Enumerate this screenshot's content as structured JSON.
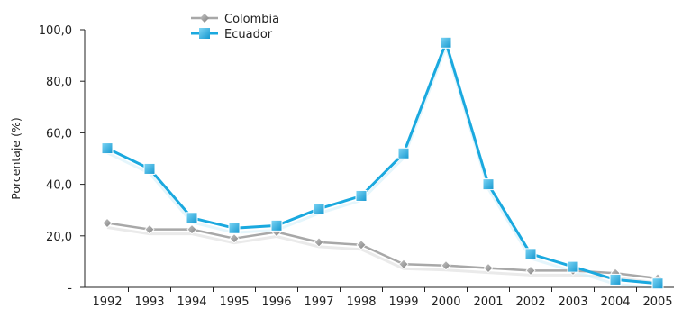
{
  "chart_data": {
    "type": "line",
    "title": "",
    "xlabel": "",
    "ylabel": "Porcentaje (%)",
    "categories": [
      "1992",
      "1993",
      "1994",
      "1995",
      "1996",
      "1997",
      "1998",
      "1999",
      "2000",
      "2001",
      "2002",
      "2003",
      "2004",
      "2005"
    ],
    "ylim": [
      0,
      100
    ],
    "y_ticks": [
      0,
      20,
      40,
      60,
      80,
      100
    ],
    "y_tick_labels": [
      "-",
      "20,0",
      "40,0",
      "60,0",
      "80,0",
      "100,0"
    ],
    "grid": false,
    "legend_position": "top-left",
    "series": [
      {
        "name": "Colombia",
        "color": "#a8a8a8",
        "marker": "diamond",
        "values": [
          25.0,
          22.5,
          22.5,
          19.0,
          21.5,
          17.5,
          16.5,
          9.0,
          8.5,
          7.5,
          6.5,
          6.5,
          5.5,
          3.5
        ]
      },
      {
        "name": "Ecuador",
        "color": "#1aa9df",
        "marker": "square",
        "values": [
          54.0,
          46.0,
          27.0,
          23.0,
          24.0,
          30.5,
          35.5,
          52.0,
          95.0,
          40.0,
          13.0,
          8.0,
          3.0,
          1.5
        ]
      }
    ]
  }
}
